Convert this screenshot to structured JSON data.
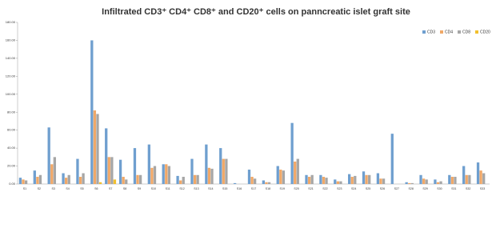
{
  "chart_data": {
    "type": "bar",
    "title": "Infiltrated CD3⁺ CD4⁺ CD8⁺ and CD20⁺ cells on panncreatic islet graft site",
    "categories": [
      "S1",
      "S2",
      "S3",
      "S4",
      "S5",
      "S6",
      "S7",
      "S8",
      "S9",
      "S10",
      "S11",
      "S12",
      "S13",
      "S14",
      "S15",
      "S16",
      "S17",
      "S18",
      "S19",
      "S20",
      "S21",
      "S22",
      "S23",
      "S24",
      "S25",
      "S26",
      "S27",
      "S28",
      "S29",
      "S30",
      "S31",
      "S32",
      "S33"
    ],
    "series": [
      {
        "name": "CD3",
        "color": "#6f9fcf",
        "values": [
          7,
          15,
          63,
          12,
          28,
          160,
          62,
          27,
          40,
          44,
          22,
          9,
          28,
          44,
          40,
          1,
          16,
          4,
          20,
          68,
          10,
          10,
          5,
          11,
          14,
          12,
          56,
          2,
          10,
          5,
          10,
          20,
          24
        ]
      },
      {
        "name": "CD4",
        "color": "#f0a868",
        "values": [
          5,
          8,
          22,
          7,
          8,
          82,
          30,
          8,
          10,
          18,
          22,
          4,
          10,
          18,
          28,
          0,
          8,
          2,
          16,
          25,
          8,
          8,
          3,
          8,
          10,
          6,
          0,
          1,
          6,
          2,
          8,
          10,
          15
        ]
      },
      {
        "name": "CD8",
        "color": "#a6a6a6",
        "values": [
          4,
          10,
          30,
          10,
          12,
          78,
          30,
          5,
          10,
          20,
          20,
          8,
          10,
          17,
          28,
          0,
          6,
          2,
          15,
          28,
          10,
          7,
          3,
          9,
          10,
          6,
          0,
          1,
          5,
          3,
          8,
          10,
          12
        ]
      },
      {
        "name": "CD20",
        "color": "#f2c02e",
        "values": [
          0,
          0,
          0,
          0,
          0,
          2,
          5,
          0,
          0,
          0,
          0,
          0,
          0,
          0,
          0,
          0,
          0,
          0,
          0,
          0,
          0,
          0,
          0,
          0,
          0,
          0,
          0,
          0,
          0,
          0,
          0,
          0,
          0
        ]
      }
    ],
    "ylim": [
      0,
      180
    ],
    "yticks": [
      {
        "value": 0,
        "label": "0.00"
      },
      {
        "value": 20,
        "label": "20.00"
      },
      {
        "value": 40,
        "label": "40.00"
      },
      {
        "value": 60,
        "label": "60.00"
      },
      {
        "value": 80,
        "label": "80.00"
      },
      {
        "value": 100,
        "label": "100.00"
      },
      {
        "value": 120,
        "label": "120.00"
      },
      {
        "value": 140,
        "label": "140.00"
      },
      {
        "value": 160,
        "label": "160.00"
      },
      {
        "value": 180,
        "label": "180.00"
      }
    ],
    "grid": false,
    "legend": "top-right"
  }
}
